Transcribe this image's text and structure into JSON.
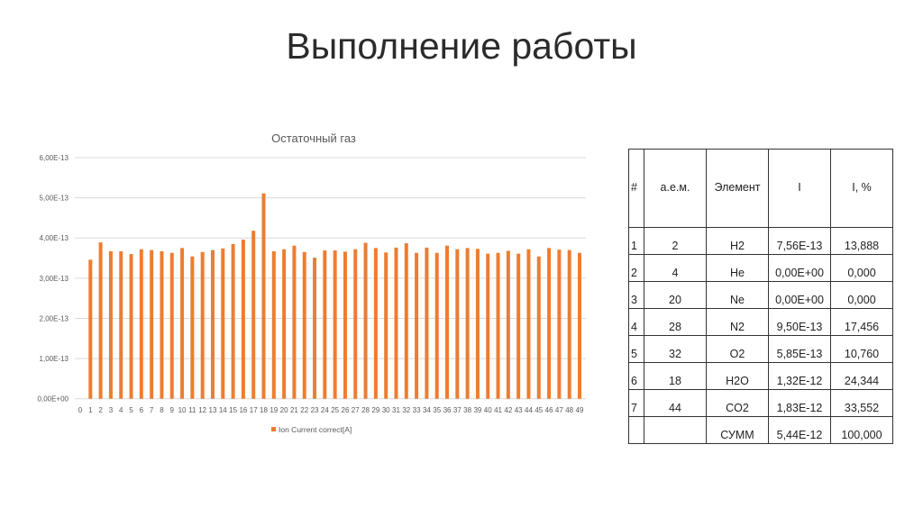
{
  "slide": {
    "title": "Выполнение работы"
  },
  "chart_data": {
    "type": "bar",
    "title": "Остаточный газ",
    "xlabel": "",
    "ylabel": "",
    "ylim": [
      0,
      6e-13
    ],
    "yticks": [
      "0,00E+00",
      "1,00E-13",
      "2,00E-13",
      "3,00E-13",
      "4,00E-13",
      "5,00E-13",
      "6,00E-13"
    ],
    "grid": true,
    "legend_position": "bottom",
    "bar_color": "#ED7D31",
    "categories": [
      "0",
      "1",
      "2",
      "3",
      "4",
      "5",
      "6",
      "7",
      "8",
      "9",
      "10",
      "11",
      "12",
      "13",
      "14",
      "15",
      "16",
      "17",
      "18",
      "19",
      "20",
      "21",
      "22",
      "23",
      "24",
      "25",
      "26",
      "27",
      "28",
      "29",
      "30",
      "31",
      "32",
      "33",
      "34",
      "35",
      "36",
      "37",
      "38",
      "39",
      "40",
      "41",
      "42",
      "43",
      "44",
      "45",
      "46",
      "47",
      "48",
      "49"
    ],
    "series": [
      {
        "name": "Ion Current correct[A]",
        "values": [
          0,
          3.46e-13,
          3.89e-13,
          3.67e-13,
          3.67e-13,
          3.6e-13,
          3.72e-13,
          3.7e-13,
          3.67e-13,
          3.63e-13,
          3.75e-13,
          3.54e-13,
          3.65e-13,
          3.7e-13,
          3.74e-13,
          3.85e-13,
          3.96e-13,
          4.18e-13,
          5.11e-13,
          3.67e-13,
          3.72e-13,
          3.81e-13,
          3.65e-13,
          3.51e-13,
          3.69e-13,
          3.69e-13,
          3.66e-13,
          3.72e-13,
          3.88e-13,
          3.75e-13,
          3.64e-13,
          3.76e-13,
          3.87e-13,
          3.63e-13,
          3.76e-13,
          3.63e-13,
          3.81e-13,
          3.72e-13,
          3.75e-13,
          3.73e-13,
          3.61e-13,
          3.63e-13,
          3.68e-13,
          3.61e-13,
          3.72e-13,
          3.54e-13,
          3.75e-13,
          3.71e-13,
          3.7e-13,
          3.63e-13
        ]
      }
    ]
  },
  "table": {
    "headers": [
      "#",
      "а.е.м.",
      "Элемент",
      "I",
      "I, %"
    ],
    "rows": [
      [
        "1",
        "2",
        "H2",
        "7,56E-13",
        "13,888"
      ],
      [
        "2",
        "4",
        "He",
        "0,00E+00",
        "0,000"
      ],
      [
        "3",
        "20",
        "Ne",
        "0,00E+00",
        "0,000"
      ],
      [
        "4",
        "28",
        "N2",
        "9,50E-13",
        "17,456"
      ],
      [
        "5",
        "32",
        "O2",
        "5,85E-13",
        "10,760"
      ],
      [
        "6",
        "18",
        "H2O",
        "1,32E-12",
        "24,344"
      ],
      [
        "7",
        "44",
        "CO2",
        "1,83E-12",
        "33,552"
      ],
      [
        "",
        "",
        "СУММ",
        "5,44E-12",
        "100,000"
      ]
    ]
  }
}
